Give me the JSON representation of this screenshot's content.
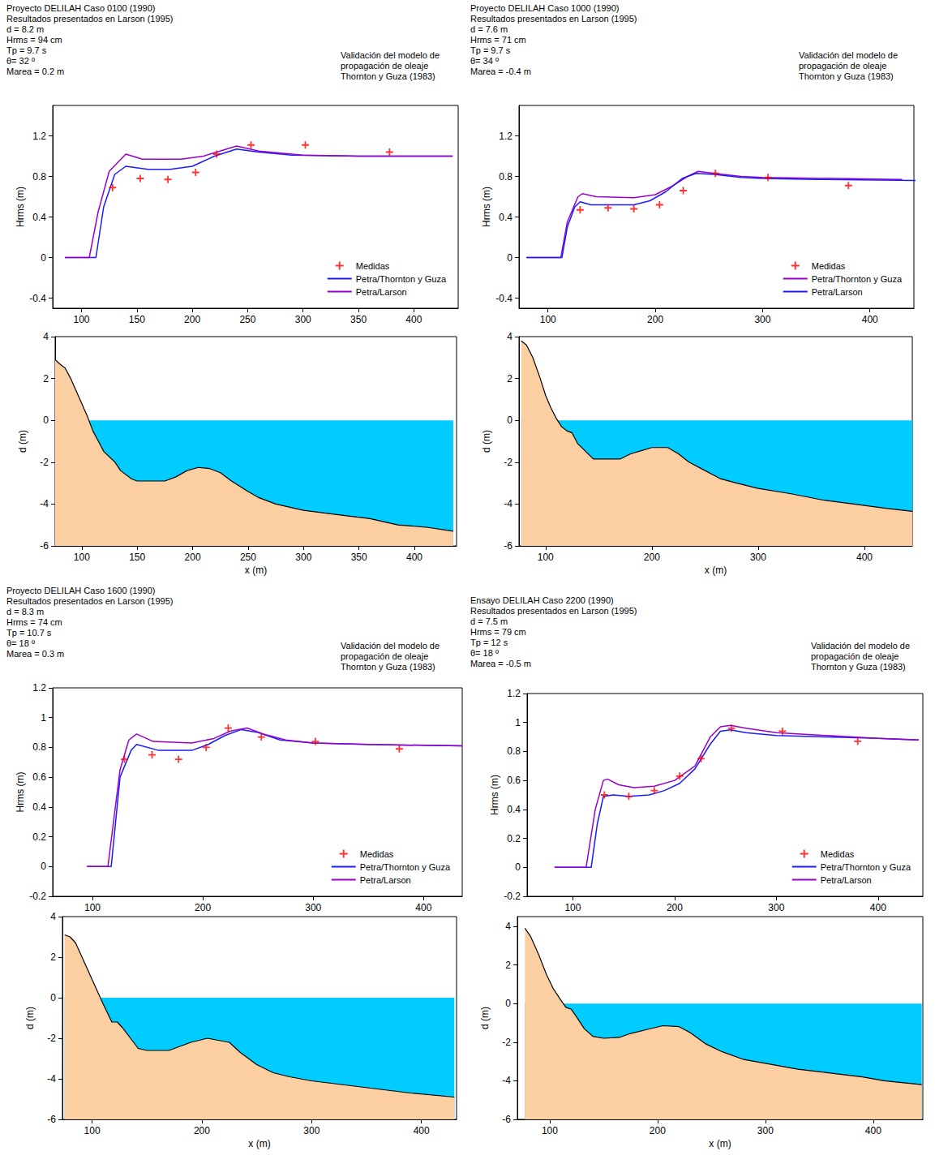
{
  "chart_data": [
    {
      "type": "line",
      "title": "Proyecto DELILAH Caso 0100 (1990)",
      "subtitle": [
        "Resultados presentados en Larson (1995)",
        "d = 8.2 m",
        "Hrms = 94 cm",
        "Tp = 9.7 s",
        "θ= 32 º",
        "Marea = 0.2 m"
      ],
      "annotation": [
        "Validación del modelo de",
        "propagación de oleaje",
        "Thornton y Guza (1983)"
      ],
      "ylabel": "Hrms (m)",
      "xlim": [
        74,
        440
      ],
      "xticks": [
        100,
        150,
        200,
        250,
        300,
        350,
        400
      ],
      "ylim": [
        -0.5,
        1.5
      ],
      "yticks": [
        -0.4,
        0,
        0.4,
        0.8,
        1.2
      ],
      "grid": false,
      "legend": "lower right",
      "series": [
        {
          "name": "Medidas",
          "type": "scatter",
          "marker": "plus",
          "color": "#ff0000",
          "x": [
            128,
            153,
            178,
            203,
            222,
            253,
            302,
            378
          ],
          "values": [
            0.69,
            0.78,
            0.77,
            0.84,
            1.02,
            1.11,
            1.11,
            1.04
          ]
        },
        {
          "name": "Petra/Thornton y Guza",
          "type": "line",
          "color": "#1a1aff",
          "x": [
            85,
            113,
            120,
            130,
            140,
            160,
            180,
            200,
            220,
            240,
            260,
            290,
            350,
            435
          ],
          "values": [
            0,
            0,
            0.5,
            0.82,
            0.9,
            0.87,
            0.87,
            0.9,
            1.0,
            1.07,
            1.04,
            1.01,
            1.0,
            1.0
          ]
        },
        {
          "name": "Petra/Larson",
          "type": "line",
          "color": "#9900cc",
          "x": [
            85,
            107,
            115,
            125,
            140,
            155,
            190,
            210,
            225,
            240,
            260,
            300,
            350,
            435
          ],
          "values": [
            0,
            0,
            0.45,
            0.85,
            1.02,
            0.97,
            0.97,
            1.0,
            1.05,
            1.1,
            1.05,
            1.01,
            1.0,
            1.0
          ]
        }
      ]
    },
    {
      "type": "area",
      "ylabel": "d (m)",
      "xlabel": "x (m)",
      "xlim": [
        76,
        438
      ],
      "xticks": [
        100,
        150,
        200,
        250,
        300,
        350,
        400
      ],
      "ylim": [
        -6,
        4
      ],
      "yticks": [
        -6,
        -4,
        -2,
        0,
        2,
        4
      ],
      "grid": false,
      "series": [
        {
          "x": [
            76,
            435
          ],
          "values": [
            0,
            0
          ],
          "color": "#00ccff",
          "line_style": "none"
        },
        {
          "x": [
            76,
            80,
            85,
            90,
            95,
            100,
            105,
            110,
            115,
            120,
            130,
            135,
            145,
            150,
            175,
            185,
            195,
            205,
            215,
            225,
            235,
            250,
            260,
            275,
            300,
            330,
            360,
            385,
            410,
            435
          ],
          "values": [
            2.9,
            2.7,
            2.5,
            2.0,
            1.4,
            0.8,
            0.2,
            -0.5,
            -1.0,
            -1.5,
            -2.0,
            -2.4,
            -2.8,
            -2.9,
            -2.9,
            -2.7,
            -2.4,
            -2.25,
            -2.3,
            -2.5,
            -2.9,
            -3.4,
            -3.7,
            -4.0,
            -4.3,
            -4.5,
            -4.7,
            -5.0,
            -5.1,
            -5.3
          ],
          "color": "#fbcfa2",
          "line_style": "solid"
        }
      ]
    },
    {
      "type": "line",
      "title": "Proyecto DELILAH Caso 1000 (1990)",
      "subtitle": [
        "Resultados presentados en Larson (1995)",
        "d = 7.6 m",
        "Hrms = 71 cm",
        "Tp = 9.7 s",
        "θ= 34 º",
        "Marea = -0.4 m"
      ],
      "annotation": [
        "Validación del modelo de",
        "propagación de oleaje",
        "Thornton y Guza (1983)"
      ],
      "ylabel": "Hrms (m)",
      "xlim": [
        73,
        441
      ],
      "xticks": [
        100,
        200,
        300,
        400
      ],
      "ylim": [
        -0.5,
        1.5
      ],
      "yticks": [
        -0.4,
        0,
        0.4,
        0.8,
        1.2
      ],
      "grid": false,
      "legend": "lower right",
      "series": [
        {
          "name": "Medidas",
          "type": "scatter",
          "marker": "plus",
          "color": "#ff0000",
          "x": [
            130,
            156,
            180,
            204,
            226,
            256,
            305,
            380
          ],
          "values": [
            0.47,
            0.49,
            0.48,
            0.52,
            0.66,
            0.83,
            0.79,
            0.71
          ]
        },
        {
          "name": "Petra/Thornton y Guza",
          "type": "line",
          "color": "#9900cc",
          "x": [
            80,
            112,
            118,
            128,
            132,
            145,
            180,
            200,
            215,
            230,
            240,
            255,
            280,
            300,
            430
          ],
          "values": [
            0,
            0,
            0.35,
            0.6,
            0.63,
            0.6,
            0.59,
            0.62,
            0.7,
            0.8,
            0.85,
            0.83,
            0.8,
            0.79,
            0.77
          ]
        },
        {
          "name": "Petra/Larson",
          "type": "line",
          "color": "#1a1aff",
          "x": [
            80,
            113,
            118,
            125,
            130,
            140,
            180,
            195,
            210,
            225,
            238,
            255,
            280,
            300,
            350,
            445
          ],
          "values": [
            0,
            0,
            0.3,
            0.5,
            0.55,
            0.52,
            0.52,
            0.56,
            0.65,
            0.78,
            0.83,
            0.82,
            0.79,
            0.78,
            0.77,
            0.76
          ]
        }
      ]
    },
    {
      "type": "area",
      "ylabel": "d (m)",
      "xlabel": "x (m)",
      "xlim": [
        75,
        445
      ],
      "xticks": [
        100,
        200,
        300,
        400
      ],
      "ylim": [
        -6,
        4
      ],
      "yticks": [
        -6,
        -4,
        -2,
        0,
        2,
        4
      ],
      "grid": false,
      "series": [
        {
          "x": [
            77,
            445
          ],
          "values": [
            0,
            0
          ],
          "color": "#00ccff",
          "line_style": "none"
        },
        {
          "x": [
            77,
            82,
            88,
            95,
            100,
            105,
            110,
            115,
            120,
            125,
            130,
            138,
            145,
            170,
            180,
            190,
            200,
            215,
            225,
            235,
            250,
            265,
            280,
            300,
            330,
            360,
            390,
            420,
            445
          ],
          "values": [
            3.8,
            3.6,
            3.0,
            2.0,
            1.2,
            0.6,
            0.1,
            -0.3,
            -0.5,
            -0.6,
            -1.1,
            -1.5,
            -1.85,
            -1.85,
            -1.6,
            -1.45,
            -1.3,
            -1.3,
            -1.6,
            -2.0,
            -2.4,
            -2.8,
            -3.0,
            -3.25,
            -3.5,
            -3.8,
            -4.0,
            -4.2,
            -4.35
          ],
          "color": "#fbcfa2",
          "line_style": "solid"
        }
      ]
    },
    {
      "type": "line",
      "title": "Proyecto DELILAH Caso 1600 (1990)",
      "subtitle": [
        "Resultados presentados en Larson (1995)",
        "d = 8.3 m",
        "Hrms = 74 cm",
        "Tp = 10.7 s",
        "θ= 18 º",
        "Marea = 0.3 m"
      ],
      "annotation": [
        "Validación del modelo de",
        "propagación de oleaje",
        "Thornton y Guza (1983)"
      ],
      "ylabel": "Hrms (m)",
      "xlim": [
        64,
        435
      ],
      "xticks": [
        100,
        200,
        300,
        400
      ],
      "ylim": [
        -0.2,
        1.2
      ],
      "yticks": [
        -0.2,
        0,
        0.2,
        0.4,
        0.6,
        0.8,
        1,
        1.2
      ],
      "grid": false,
      "legend": "lower right",
      "series": [
        {
          "name": "Medidas",
          "type": "scatter",
          "marker": "plus",
          "color": "#ff0000",
          "x": [
            129,
            154,
            178,
            203,
            223,
            253,
            302,
            378
          ],
          "values": [
            0.72,
            0.75,
            0.72,
            0.8,
            0.93,
            0.87,
            0.84,
            0.79
          ]
        },
        {
          "name": "Petra/Thornton y Guza",
          "type": "line",
          "color": "#1a1aff",
          "x": [
            95,
            117,
            125,
            135,
            140,
            160,
            190,
            205,
            220,
            235,
            250,
            270,
            300,
            350,
            435
          ],
          "values": [
            0,
            0,
            0.6,
            0.78,
            0.82,
            0.78,
            0.78,
            0.82,
            0.88,
            0.92,
            0.9,
            0.85,
            0.83,
            0.82,
            0.81
          ]
        },
        {
          "name": "Petra/Larson",
          "type": "line",
          "color": "#9900cc",
          "x": [
            95,
            114,
            125,
            133,
            140,
            155,
            190,
            210,
            225,
            240,
            255,
            275,
            300,
            350,
            435
          ],
          "values": [
            0,
            0,
            0.65,
            0.85,
            0.89,
            0.84,
            0.83,
            0.86,
            0.91,
            0.93,
            0.89,
            0.85,
            0.83,
            0.82,
            0.81
          ]
        }
      ]
    },
    {
      "type": "area",
      "ylabel": "d (m)",
      "xlabel": "x (m)",
      "xlim": [
        73,
        432
      ],
      "xticks": [
        100,
        200,
        300,
        400
      ],
      "ylim": [
        -6,
        4
      ],
      "yticks": [
        -6,
        -4,
        -2,
        0,
        2,
        4
      ],
      "grid": false,
      "series": [
        {
          "x": [
            75,
            430
          ],
          "values": [
            0,
            0
          ],
          "color": "#00ccff",
          "line_style": "none"
        },
        {
          "x": [
            75,
            80,
            85,
            95,
            105,
            110,
            118,
            123,
            128,
            135,
            142,
            150,
            170,
            180,
            190,
            205,
            215,
            225,
            235,
            250,
            265,
            280,
            300,
            330,
            360,
            390,
            430
          ],
          "values": [
            3.1,
            3.0,
            2.7,
            1.5,
            0.3,
            -0.3,
            -1.2,
            -1.2,
            -1.5,
            -2.0,
            -2.5,
            -2.6,
            -2.6,
            -2.4,
            -2.2,
            -2.0,
            -2.1,
            -2.2,
            -2.7,
            -3.3,
            -3.7,
            -3.9,
            -4.1,
            -4.3,
            -4.5,
            -4.7,
            -4.9
          ],
          "color": "#fbcfa2",
          "line_style": "solid"
        }
      ]
    },
    {
      "type": "line",
      "title": "Ensayo DELILAH Caso 2200 (1990)",
      "subtitle": [
        "Resultados presentados en Larson (1995)",
        "d = 7.5 m",
        "Hrms = 79 cm",
        "Tp = 12 s",
        "θ= 18 º",
        "Marea = -0.5 m"
      ],
      "annotation": [
        "Validación del modelo de",
        "propagación de oleaje",
        "Thornton y Guza (1983)"
      ],
      "ylabel": "Hrms (m)",
      "xlim": [
        55,
        444
      ],
      "xticks": [
        100,
        200,
        300,
        400
      ],
      "ylim": [
        -0.2,
        1.2
      ],
      "yticks": [
        -0.2,
        0,
        0.2,
        0.4,
        0.6,
        0.8,
        1,
        1.2
      ],
      "grid": false,
      "legend": "lower right",
      "series": [
        {
          "name": "Medidas",
          "type": "scatter",
          "marker": "plus",
          "color": "#ff0000",
          "x": [
            131,
            155,
            180,
            205,
            226,
            256,
            306,
            380
          ],
          "values": [
            0.5,
            0.49,
            0.53,
            0.63,
            0.75,
            0.96,
            0.94,
            0.87
          ]
        },
        {
          "name": "Petra/Thornton y Guza",
          "type": "line",
          "color": "#1a1aff",
          "x": [
            82,
            118,
            124,
            130,
            140,
            155,
            175,
            190,
            205,
            220,
            235,
            245,
            255,
            270,
            300,
            350,
            400,
            440
          ],
          "values": [
            0,
            0,
            0.3,
            0.49,
            0.5,
            0.49,
            0.5,
            0.53,
            0.58,
            0.68,
            0.85,
            0.94,
            0.95,
            0.93,
            0.91,
            0.9,
            0.89,
            0.88
          ]
        },
        {
          "name": "Petra/Larson",
          "type": "line",
          "color": "#9900cc",
          "x": [
            82,
            113,
            122,
            130,
            134,
            145,
            160,
            180,
            200,
            220,
            235,
            245,
            255,
            270,
            300,
            350,
            400,
            440
          ],
          "values": [
            0,
            0,
            0.4,
            0.6,
            0.61,
            0.57,
            0.55,
            0.56,
            0.6,
            0.7,
            0.9,
            0.97,
            0.98,
            0.96,
            0.93,
            0.91,
            0.89,
            0.88
          ]
        }
      ]
    },
    {
      "type": "area",
      "ylabel": "d (m)",
      "xlabel": "x (m)",
      "xlim": [
        70,
        446
      ],
      "xticks": [
        100,
        200,
        300,
        400
      ],
      "ylim": [
        -6,
        4.5
      ],
      "yticks": [
        -6,
        -4,
        -2,
        0,
        2,
        4
      ],
      "grid": false,
      "series": [
        {
          "x": [
            77,
            445
          ],
          "values": [
            0,
            0
          ],
          "color": "#00ccff",
          "line_style": "none"
        },
        {
          "x": [
            77,
            82,
            90,
            97,
            103,
            110,
            115,
            120,
            125,
            132,
            140,
            150,
            165,
            175,
            190,
            205,
            220,
            230,
            245,
            260,
            280,
            300,
            330,
            360,
            390,
            410,
            445
          ],
          "values": [
            3.9,
            3.5,
            2.5,
            1.5,
            0.8,
            0.2,
            -0.2,
            -0.3,
            -0.7,
            -1.3,
            -1.7,
            -1.8,
            -1.75,
            -1.55,
            -1.35,
            -1.15,
            -1.2,
            -1.5,
            -2.1,
            -2.5,
            -2.9,
            -3.1,
            -3.4,
            -3.6,
            -3.8,
            -4.0,
            -4.2
          ],
          "color": "#fbcfa2",
          "line_style": "solid"
        }
      ]
    }
  ]
}
